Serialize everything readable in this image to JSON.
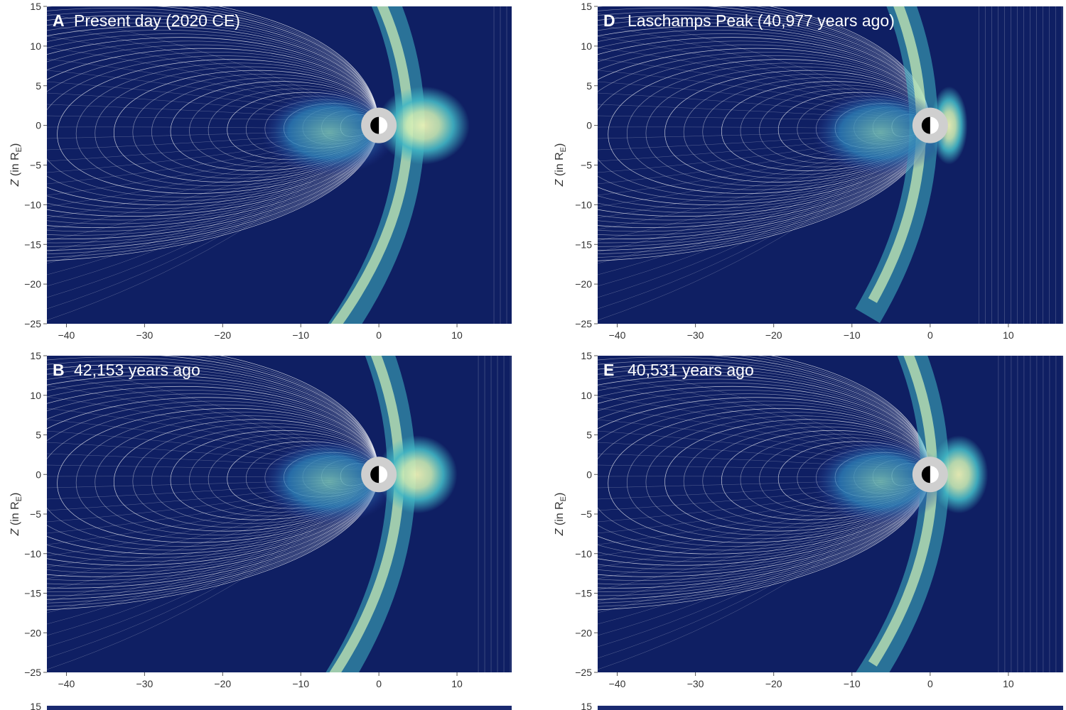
{
  "chart_data": [
    {
      "type": "streamplot-field",
      "panel_letter": "A",
      "title": "Present day (2020 CE)",
      "ylabel_main": "Z",
      "ylabel_rest": " (in R",
      "ylabel_sub": "E",
      "ylabel_close": ")",
      "xlim": [
        -42.5,
        17
      ],
      "ylim": [
        -25,
        15
      ],
      "xticks": [
        -40,
        -30,
        -20,
        -10,
        0,
        10
      ],
      "xtick_labels": [
        "−40",
        "−30",
        "−20",
        "−10",
        "0",
        "10"
      ],
      "yticks": [
        15,
        10,
        5,
        0,
        -5,
        -10,
        -15,
        -20,
        -25
      ],
      "ytick_labels": [
        "15",
        "10",
        "5",
        "0",
        "−5",
        "−10",
        "−15",
        "−20",
        "−25"
      ],
      "bowshock_nose_x": 14,
      "bowshock_half_height": 30,
      "magnetopause_nose_x": 9.5
    },
    {
      "type": "streamplot-field",
      "panel_letter": "D",
      "title": "Laschamps Peak (40,977 years ago)",
      "ylabel_main": "Z",
      "ylabel_rest": " (in R",
      "ylabel_sub": "E",
      "ylabel_close": ")",
      "xlim": [
        -42.5,
        17
      ],
      "ylim": [
        -25,
        15
      ],
      "xticks": [
        -40,
        -30,
        -20,
        -10,
        0,
        10
      ],
      "xtick_labels": [
        "−40",
        "−30",
        "−20",
        "−10",
        "0",
        "10"
      ],
      "yticks": [
        15,
        10,
        5,
        0,
        -5,
        -10,
        -15,
        -20,
        -25
      ],
      "ytick_labels": [
        "15",
        "10",
        "5",
        "0",
        "−5",
        "−10",
        "−15",
        "−20",
        "−25"
      ],
      "bowshock_nose_x": 5.5,
      "bowshock_half_height": 24,
      "magnetopause_nose_x": 3
    },
    {
      "type": "streamplot-field",
      "panel_letter": "B",
      "title": "42,153 years ago",
      "ylabel_main": "Z",
      "ylabel_rest": " (in R",
      "ylabel_sub": "E",
      "ylabel_close": ")",
      "xlim": [
        -42.5,
        17
      ],
      "ylim": [
        -25,
        15
      ],
      "xticks": [
        -40,
        -30,
        -20,
        -10,
        0,
        10
      ],
      "xtick_labels": [
        "−40",
        "−30",
        "−20",
        "−10",
        "0",
        "10"
      ],
      "yticks": [
        15,
        10,
        5,
        0,
        -5,
        -10,
        -15,
        -20,
        -25
      ],
      "ytick_labels": [
        "15",
        "10",
        "5",
        "0",
        "−5",
        "−10",
        "−15",
        "−20",
        "−25"
      ],
      "bowshock_nose_x": 12,
      "bowshock_half_height": 30,
      "magnetopause_nose_x": 8
    },
    {
      "type": "streamplot-field",
      "panel_letter": "E",
      "title": "40,531 years ago",
      "ylabel_main": "Z",
      "ylabel_rest": " (in R",
      "ylabel_sub": "E",
      "ylabel_close": ")",
      "xlim": [
        -42.5,
        17
      ],
      "ylim": [
        -25,
        15
      ],
      "xticks": [
        -40,
        -30,
        -20,
        -10,
        0,
        10
      ],
      "xtick_labels": [
        "−40",
        "−30",
        "−20",
        "−10",
        "0",
        "10"
      ],
      "yticks": [
        15,
        10,
        5,
        0,
        -5,
        -10,
        -15,
        -20,
        -25
      ],
      "ytick_labels": [
        "15",
        "10",
        "5",
        "0",
        "−5",
        "−10",
        "−15",
        "−20",
        "−25"
      ],
      "bowshock_nose_x": 8,
      "bowshock_half_height": 26,
      "magnetopause_nose_x": 5.5
    }
  ],
  "partial_row": {
    "ytick_label": "15"
  },
  "colors": {
    "background": "#0f1f63",
    "mid_blue": "#2a3fa6",
    "cyan": "#41b6c4",
    "pale_yellow": "#f7fcb9",
    "field_line": "#ffffff",
    "earth_ring": "#cfcfcf",
    "tick_text": "#333333"
  }
}
